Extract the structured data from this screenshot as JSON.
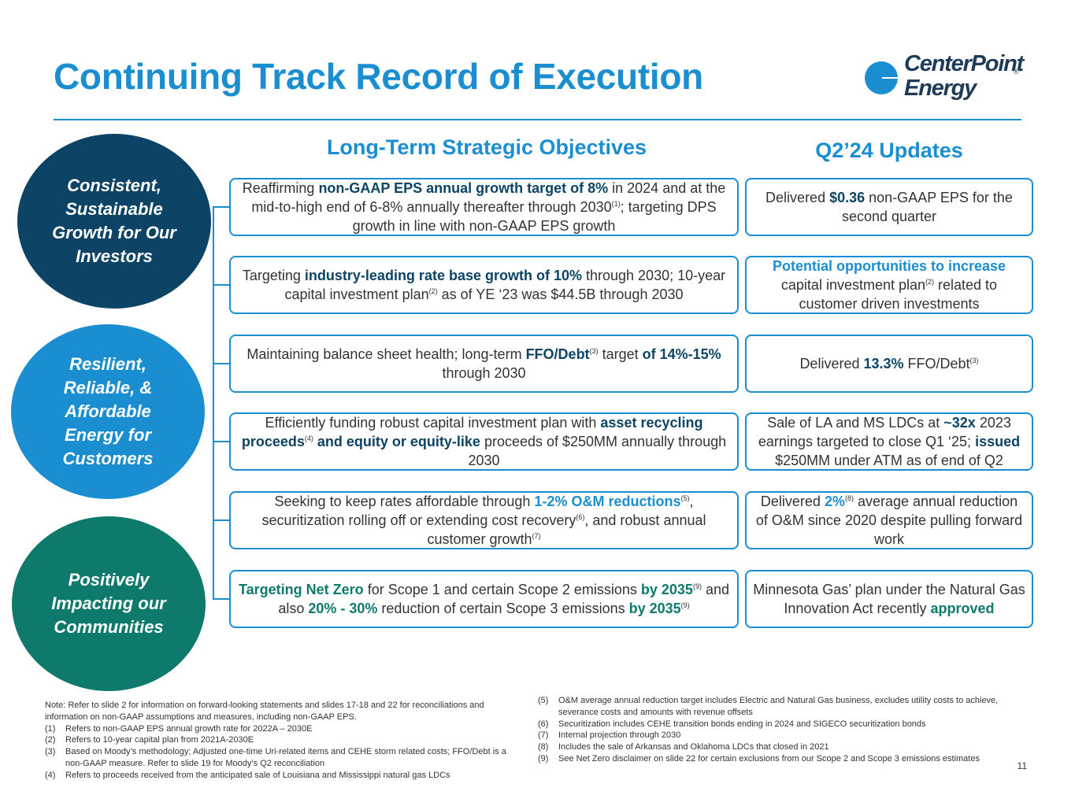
{
  "title": "Continuing Track Record of Execution",
  "logo": {
    "line1": "CenterPoint",
    "line2": "Energy",
    "registered": "®"
  },
  "headers": {
    "left": "Long-Term Strategic Objectives",
    "right": "Q2’24 Updates"
  },
  "pillars": [
    "Consistent, Sustainable Growth for Our Investors",
    "Resilient, Reliable, & Affordable Energy for Customers",
    "Positively Impacting our Communities"
  ],
  "objectives": [
    {
      "a": "Reaffirming ",
      "b": "non-GAAP EPS annual growth target of 8%",
      "c": " in 2024 and at the mid-to-high end of 6-8% annually thereafter through 2030",
      "sup": "(1)",
      "d": "; targeting DPS growth in line with non-GAAP EPS growth"
    },
    {
      "a": "Targeting ",
      "b": "industry-leading rate base growth of 10%",
      "c": " through 2030; 10-year capital investment plan",
      "sup": "(2)",
      "d": " as of YE ‘23 was $44.5B through 2030"
    },
    {
      "a": "Maintaining balance sheet health; long-term ",
      "b": "FFO/Debt",
      "sup": "(3)",
      "c": " target ",
      "d": "of 14%-15%",
      "e": " through 2030"
    },
    {
      "a": "Efficiently funding robust capital investment plan with ",
      "b": "asset recycling proceeds",
      "sup": "(4)",
      "c": " and equity or equity-like",
      "d": " proceeds of $250MM annually through 2030"
    },
    {
      "a": "Seeking to keep rates affordable through ",
      "b": "1-2% O&M reductions",
      "sup1": "(5)",
      "c": ", securitization rolling off or extending cost recovery",
      "sup2": "(6)",
      "d": ", and robust annual customer growth",
      "sup3": "(7)"
    },
    {
      "a": "Targeting Net Zero",
      "b": " for Scope 1 and certain Scope 2 emissions ",
      "c": "by 2035",
      "sup1": "(9)",
      "d": " and also ",
      "e": "20% - 30%",
      "f": " reduction of certain Scope 3 emissions ",
      "g": "by 2035",
      "sup2": "(9)"
    }
  ],
  "updates": [
    {
      "a": "Delivered ",
      "b": "$",
      "c": "0.36",
      "d": " non-GAAP EPS for the second quarter"
    },
    {
      "a": "Potential opportunities to increase",
      "b": " capital investment plan",
      "sup": "(2)",
      "c": " related to customer driven investments"
    },
    {
      "a": "Delivered ",
      "b": "13.3%",
      "c": " FFO/Debt",
      "sup": "(3)"
    },
    {
      "a": "Sale of LA and MS LDCs at ",
      "b": "~32x",
      "c": " 2023 earnings targeted to close Q1 ‘25; ",
      "d": "issued",
      "e": " $250MM under ATM as of end of Q2"
    },
    {
      "a": "Delivered ",
      "b": "2%",
      "sup": "(8)",
      "c": " average annual reduction of O&M since 2020 despite pulling forward work"
    },
    {
      "a": "Minnesota Gas’ plan under the Natural Gas Innovation Act recently ",
      "b": "approved"
    }
  ],
  "notes_left": {
    "intro": "Note: Refer to slide 2 for information on forward-looking statements and slides 17-18 and 22 for reconciliations and information on non-GAAP assumptions and measures, including non-GAAP EPS.",
    "items": [
      {
        "n": "(1)",
        "t": "Refers to non-GAAP EPS annual growth rate for 2022A – 2030E"
      },
      {
        "n": "(2)",
        "t": "Refers to 10-year capital plan from 2021A-2030E"
      },
      {
        "n": "(3)",
        "t": "Based on Moody’s methodology; Adjusted one-time Uri-related items and CEHE storm related costs; FFO/Debt is a non-GAAP measure.  Refer to slide 19 for Moody’s Q2 reconciliation"
      },
      {
        "n": "(4)",
        "t": "Refers to proceeds received from the anticipated sale of Louisiana and Mississippi natural gas LDCs"
      }
    ]
  },
  "notes_right": [
    {
      "n": "(5)",
      "t": "O&M average annual reduction target includes Electric and Natural Gas business, excludes utility costs to achieve, severance costs and amounts with revenue offsets"
    },
    {
      "n": "(6)",
      "t": "Securitization includes CEHE transition bonds ending in 2024 and SIGECO securitization bonds"
    },
    {
      "n": "(7)",
      "t": "Internal projection through 2030"
    },
    {
      "n": "(8)",
      "t": "Includes the sale of Arkansas and Oklahoma LDCs that closed in 2021"
    },
    {
      "n": "(9)",
      "t": "See Net Zero disclaimer on slide 22 for certain exclusions from our Scope 2 and Scope 3 emissions estimates"
    }
  ],
  "page_number": "11"
}
